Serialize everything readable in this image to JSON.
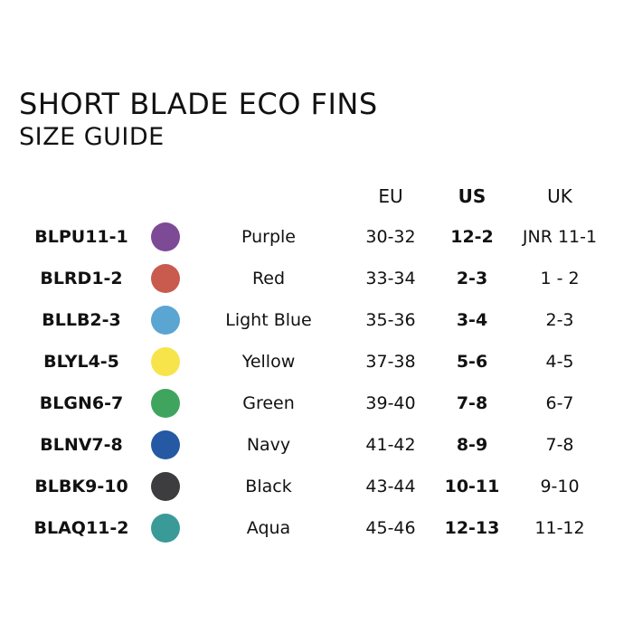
{
  "title": "SHORT BLADE ECO FINS",
  "subtitle": "SIZE GUIDE",
  "headers": {
    "eu": "EU",
    "us": "US",
    "uk": "UK"
  },
  "rows": [
    {
      "code": "BLPU11-1",
      "color_name": "Purple",
      "color": "#7d4a96",
      "eu": "30-32",
      "us": "12-2",
      "uk": "JNR 11-1"
    },
    {
      "code": "BLRD1-2",
      "color_name": "Red",
      "color": "#c85a4e",
      "eu": "33-34",
      "us": "2-3",
      "uk": "1 - 2"
    },
    {
      "code": "BLLB2-3",
      "color_name": "Light Blue",
      "color": "#5aa5d2",
      "eu": "35-36",
      "us": "3-4",
      "uk": "2-3"
    },
    {
      "code": "BLYL4-5",
      "color_name": "Yellow",
      "color": "#f7e44a",
      "eu": "37-38",
      "us": "5-6",
      "uk": "4-5"
    },
    {
      "code": "BLGN6-7",
      "color_name": "Green",
      "color": "#3fa55e",
      "eu": "39-40",
      "us": "7-8",
      "uk": "6-7"
    },
    {
      "code": "BLNV7-8",
      "color_name": "Navy",
      "color": "#2559a3",
      "eu": "41-42",
      "us": "8-9",
      "uk": "7-8"
    },
    {
      "code": "BLBK9-10",
      "color_name": "Black",
      "color": "#3d3d40",
      "eu": "43-44",
      "us": "10-11",
      "uk": "9-10"
    },
    {
      "code": "BLAQ11-2",
      "color_name": "Aqua",
      "color": "#3a9a98",
      "eu": "45-46",
      "us": "12-13",
      "uk": "11-12"
    }
  ]
}
